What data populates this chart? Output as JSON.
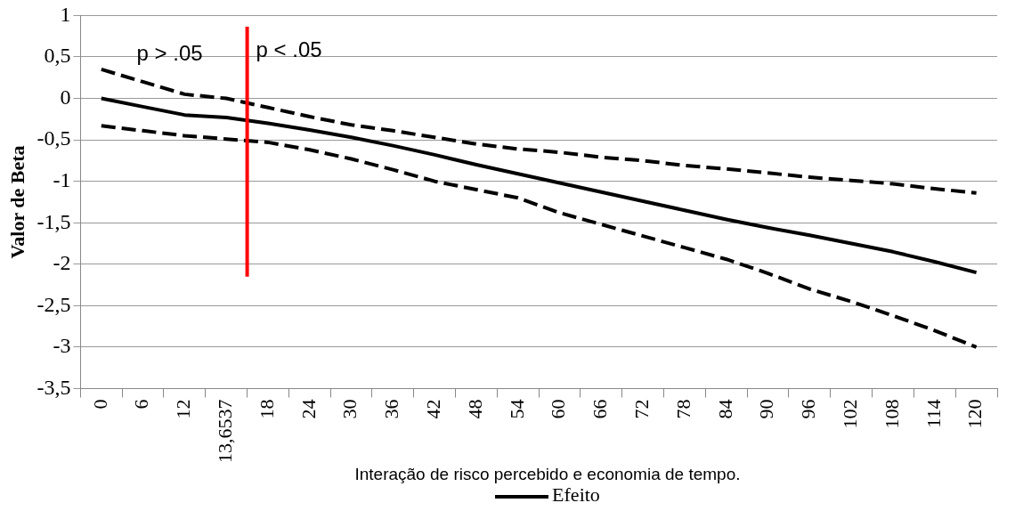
{
  "chart_data": {
    "type": "line",
    "xlabel": "Interação de risco percebido e economia de tempo.",
    "ylabel": "Valor de Beta",
    "categories": [
      "0",
      "6",
      "12",
      "13,6537",
      "18",
      "24",
      "30",
      "36",
      "42",
      "48",
      "54",
      "60",
      "66",
      "72",
      "78",
      "84",
      "90",
      "96",
      "102",
      "108",
      "114",
      "120"
    ],
    "series": [
      {
        "name": "Efeito",
        "color": "#000000",
        "line_style": "solid",
        "values": [
          0,
          -0.1,
          -0.2,
          -0.23,
          -0.3,
          -0.38,
          -0.47,
          -0.57,
          -0.68,
          -0.8,
          -0.91,
          -1.02,
          -1.13,
          -1.24,
          -1.35,
          -1.46,
          -1.56,
          -1.65,
          -1.75,
          -1.85,
          -1.97,
          -2.1
        ]
      },
      {
        "color": "#000000",
        "line_style": "dashed",
        "values": [
          0.35,
          0.2,
          0.05,
          0,
          -0.11,
          -0.22,
          -0.32,
          -0.39,
          -0.47,
          -0.55,
          -0.61,
          -0.65,
          -0.71,
          -0.75,
          -0.81,
          -0.85,
          -0.9,
          -0.95,
          -0.99,
          -1.03,
          -1.09,
          -1.14
        ]
      },
      {
        "color": "#000000",
        "line_style": "dashed",
        "values": [
          -0.33,
          -0.39,
          -0.45,
          -0.49,
          -0.53,
          -0.62,
          -0.73,
          -0.86,
          -1.0,
          -1.1,
          -1.2,
          -1.38,
          -1.52,
          -1.66,
          -1.8,
          -1.94,
          -2.11,
          -2.3,
          -2.45,
          -2.62,
          -2.8,
          -3.0
        ]
      }
    ],
    "ylim": [
      -3.5,
      1
    ],
    "yticks": [
      {
        "value": -3.5,
        "label": "-3,5"
      },
      -3,
      {
        "value": -2.5,
        "label": "-2,5"
      },
      -2,
      {
        "value": -1.5,
        "label": "-1,5"
      },
      -1,
      {
        "value": -0.5,
        "label": "-0,5"
      },
      0,
      {
        "value": 0.5,
        "label": "0,5"
      },
      1
    ],
    "ref_lines": [
      {
        "axis": "x",
        "value": "13,6537",
        "color": "#ff0000"
      }
    ],
    "annotations": [
      "p > .05",
      "p < .05"
    ],
    "grid": "y",
    "legend": "bottom",
    "marker": "none"
  }
}
